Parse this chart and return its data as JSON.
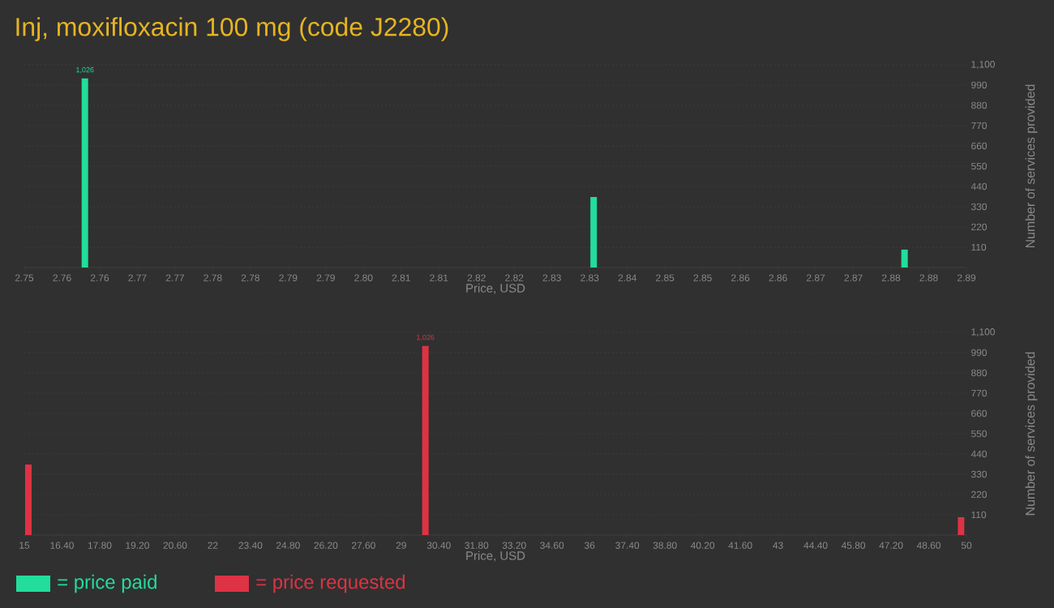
{
  "chart_data": [
    {
      "type": "bar",
      "title": "Inj, moxifloxacin 100 mg (code J2280)",
      "xlabel": "Price, USD",
      "ylabel": "Number of services provided",
      "grid": "y",
      "legend": "bottom",
      "x": [
        2.759,
        2.8346,
        2.8808
      ],
      "series": [
        {
          "name": "= price paid",
          "color": "#22dd9b",
          "values": [
            1026,
            383,
            97
          ],
          "value_labels": [
            "1,026",
            null,
            null
          ]
        }
      ],
      "xlim": [
        2.75,
        2.89
      ],
      "xticks": [
        2.75,
        {
          "value": 2.7556,
          "label": "2.76"
        },
        {
          "value": 2.7612,
          "label": "2.76"
        },
        {
          "value": 2.7668,
          "label": "2.77"
        },
        {
          "value": 2.7724,
          "label": "2.77"
        },
        {
          "value": 2.778,
          "label": "2.78"
        },
        {
          "value": 2.7836,
          "label": "2.78"
        },
        {
          "value": 2.7892,
          "label": "2.79"
        },
        {
          "value": 2.7948,
          "label": "2.79"
        },
        {
          "value": 2.8004,
          "label": "2.80"
        },
        {
          "value": 2.806,
          "label": "2.81"
        },
        {
          "value": 2.8116,
          "label": "2.81"
        },
        {
          "value": 2.8172,
          "label": "2.82"
        },
        {
          "value": 2.8228,
          "label": "2.82"
        },
        {
          "value": 2.8284,
          "label": "2.83"
        },
        {
          "value": 2.834,
          "label": "2.83"
        },
        {
          "value": 2.8396,
          "label": "2.84"
        },
        {
          "value": 2.8452,
          "label": "2.85"
        },
        {
          "value": 2.8508,
          "label": "2.85"
        },
        {
          "value": 2.8564,
          "label": "2.86"
        },
        {
          "value": 2.862,
          "label": "2.86"
        },
        {
          "value": 2.8676,
          "label": "2.87"
        },
        {
          "value": 2.8732,
          "label": "2.87"
        },
        {
          "value": 2.8788,
          "label": "2.88"
        },
        {
          "value": 2.8844,
          "label": "2.88"
        },
        2.89
      ],
      "ylim": [
        0,
        1100
      ],
      "yticks": [
        110,
        220,
        330,
        440,
        550,
        660,
        770,
        880,
        990,
        {
          "value": 1100,
          "label": "1,100"
        }
      ]
    },
    {
      "type": "bar",
      "xlabel": "Price, USD",
      "ylabel": "Number of services provided",
      "grid": "y",
      "legend": "bottom",
      "x": [
        15.15,
        29.9,
        49.8
      ],
      "series": [
        {
          "name": "= price requested",
          "color": "#dd3344",
          "values": [
            383,
            1026,
            97
          ],
          "value_labels": [
            null,
            "1,026",
            null
          ]
        }
      ],
      "xlim": [
        15,
        50
      ],
      "xticks": [
        15,
        {
          "value": 16.4,
          "label": "16.40"
        },
        {
          "value": 17.8,
          "label": "17.80"
        },
        {
          "value": 19.2,
          "label": "19.20"
        },
        {
          "value": 20.6,
          "label": "20.60"
        },
        22,
        {
          "value": 23.4,
          "label": "23.40"
        },
        {
          "value": 24.8,
          "label": "24.80"
        },
        {
          "value": 26.2,
          "label": "26.20"
        },
        {
          "value": 27.6,
          "label": "27.60"
        },
        29,
        {
          "value": 30.4,
          "label": "30.40"
        },
        {
          "value": 31.8,
          "label": "31.80"
        },
        {
          "value": 33.2,
          "label": "33.20"
        },
        {
          "value": 34.6,
          "label": "34.60"
        },
        36,
        {
          "value": 37.4,
          "label": "37.40"
        },
        {
          "value": 38.8,
          "label": "38.80"
        },
        {
          "value": 40.2,
          "label": "40.20"
        },
        {
          "value": 41.6,
          "label": "41.60"
        },
        43,
        {
          "value": 44.4,
          "label": "44.40"
        },
        {
          "value": 45.8,
          "label": "45.80"
        },
        {
          "value": 47.2,
          "label": "47.20"
        },
        {
          "value": 48.6,
          "label": "48.60"
        },
        50
      ],
      "ylim": [
        0,
        1100
      ],
      "yticks": [
        110,
        220,
        330,
        440,
        550,
        660,
        770,
        880,
        990,
        {
          "value": 1100,
          "label": "1,100"
        }
      ]
    }
  ]
}
